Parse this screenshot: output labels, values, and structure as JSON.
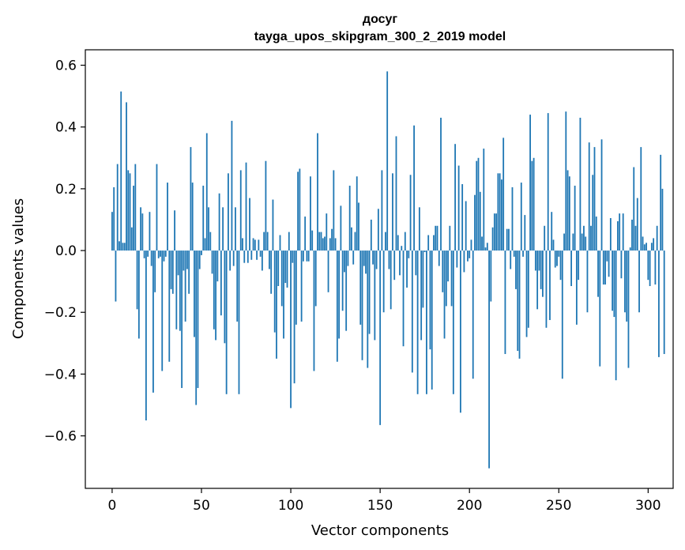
{
  "chart_data": {
    "type": "bar",
    "title": "досуг",
    "subtitle": "tayga_upos_skipgram_300_2_2019 model",
    "xlabel": "Vector components",
    "ylabel": "Components values",
    "xlim": [
      -15,
      314
    ],
    "ylim": [
      -0.77,
      0.65
    ],
    "x_ticks": [
      0,
      50,
      100,
      150,
      200,
      250,
      300
    ],
    "x_tick_labels": [
      "0",
      "50",
      "100",
      "150",
      "200",
      "250",
      "300"
    ],
    "y_ticks": [
      0.6,
      0.4,
      0.2,
      0.0,
      -0.2,
      -0.4,
      -0.6
    ],
    "y_tick_labels": [
      "0.6",
      "0.4",
      "0.2",
      "0.0",
      "−0.2",
      "−0.4",
      "−0.6"
    ],
    "grid": false,
    "bar_color": "#1f77b4",
    "values": [
      0.125,
      0.205,
      -0.165,
      0.28,
      0.03,
      0.515,
      0.025,
      0.025,
      0.48,
      0.26,
      0.25,
      0.075,
      0.21,
      0.28,
      -0.19,
      -0.285,
      0.14,
      0.12,
      -0.025,
      -0.55,
      -0.02,
      0.125,
      -0.05,
      -0.46,
      -0.135,
      0.28,
      -0.025,
      -0.02,
      -0.39,
      -0.035,
      -0.02,
      0.22,
      -0.36,
      -0.125,
      -0.14,
      0.13,
      -0.255,
      -0.08,
      -0.26,
      -0.445,
      -0.065,
      -0.23,
      -0.06,
      -0.14,
      0.335,
      0.22,
      -0.28,
      -0.5,
      -0.445,
      -0.06,
      -0.015,
      0.21,
      0.04,
      0.38,
      0.14,
      0.06,
      -0.075,
      -0.255,
      -0.29,
      -0.1,
      0.185,
      -0.21,
      0.14,
      -0.3,
      -0.465,
      0.25,
      -0.065,
      0.42,
      -0.05,
      0.14,
      -0.23,
      -0.465,
      0.26,
      0.04,
      -0.04,
      0.285,
      -0.04,
      0.17,
      -0.03,
      0.04,
      0.035,
      -0.03,
      0.035,
      -0.02,
      -0.065,
      0.06,
      0.29,
      0.06,
      -0.06,
      -0.14,
      0.165,
      -0.265,
      -0.35,
      -0.115,
      0.05,
      -0.18,
      -0.285,
      -0.105,
      -0.12,
      0.06,
      -0.51,
      -0.04,
      -0.43,
      -0.24,
      0.255,
      0.265,
      -0.23,
      -0.035,
      0.11,
      -0.035,
      -0.035,
      0.24,
      0.065,
      -0.39,
      -0.18,
      0.38,
      0.06,
      0.06,
      0.04,
      0.045,
      0.12,
      -0.135,
      0.04,
      0.07,
      0.26,
      0.04,
      -0.36,
      -0.285,
      0.145,
      -0.195,
      -0.07,
      -0.26,
      -0.05,
      0.21,
      0.075,
      -0.045,
      0.06,
      0.24,
      0.155,
      -0.24,
      -0.355,
      -0.05,
      -0.075,
      -0.38,
      -0.27,
      0.1,
      -0.045,
      -0.29,
      -0.06,
      0.135,
      -0.565,
      0.26,
      -0.2,
      0.06,
      0.58,
      -0.06,
      -0.19,
      0.25,
      -0.095,
      0.37,
      0.05,
      -0.08,
      0.015,
      -0.31,
      0.06,
      -0.12,
      -0.025,
      0.245,
      -0.395,
      0.405,
      -0.08,
      -0.465,
      0.14,
      -0.29,
      -0.185,
      -0.005,
      -0.465,
      0.05,
      -0.32,
      -0.45,
      0.05,
      0.08,
      0.08,
      -0.05,
      0.43,
      -0.135,
      -0.285,
      -0.18,
      -0.1,
      0.08,
      -0.18,
      -0.465,
      0.345,
      -0.055,
      0.275,
      -0.525,
      0.215,
      -0.07,
      0.16,
      -0.035,
      -0.025,
      0.035,
      -0.415,
      0.18,
      0.29,
      0.3,
      0.19,
      0.045,
      0.33,
      0.01,
      0.025,
      -0.705,
      -0.165,
      0.075,
      0.12,
      0.12,
      0.25,
      0.25,
      0.23,
      0.365,
      -0.335,
      0.07,
      0.07,
      -0.06,
      0.205,
      -0.02,
      -0.125,
      -0.325,
      -0.35,
      0.22,
      -0.02,
      0.115,
      -0.28,
      -0.25,
      0.44,
      0.29,
      0.3,
      -0.065,
      -0.19,
      -0.065,
      -0.125,
      -0.15,
      0.08,
      -0.25,
      0.445,
      -0.225,
      0.125,
      0.035,
      -0.055,
      -0.05,
      -0.02,
      -0.095,
      -0.415,
      0.055,
      0.45,
      0.26,
      0.24,
      -0.115,
      0.055,
      0.21,
      -0.24,
      -0.095,
      0.43,
      0.055,
      0.08,
      0.045,
      -0.2,
      0.35,
      0.08,
      0.245,
      0.335,
      0.11,
      -0.15,
      -0.375,
      0.36,
      -0.11,
      -0.11,
      -0.035,
      -0.085,
      0.105,
      -0.195,
      -0.215,
      -0.42,
      0.095,
      0.12,
      -0.09,
      0.12,
      -0.2,
      -0.23,
      -0.38,
      0.01,
      0.1,
      0.27,
      0.08,
      0.17,
      -0.2,
      0.335,
      0.045,
      0.02,
      0.025,
      -0.095,
      -0.115,
      0.025,
      0.04,
      -0.11,
      0.08,
      -0.345,
      0.31,
      0.2,
      -0.335
    ]
  }
}
